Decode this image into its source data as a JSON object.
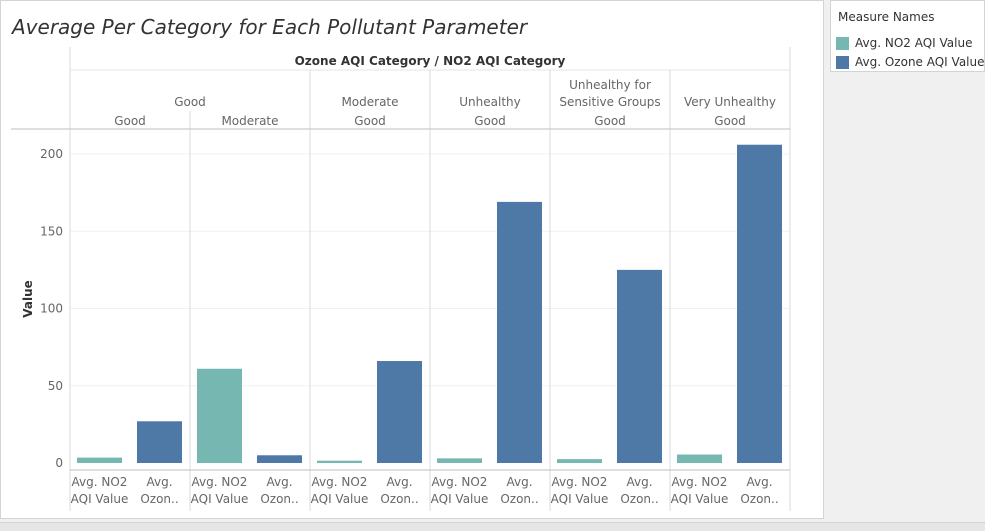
{
  "colors": {
    "no2": "#76b7b2",
    "ozone": "#4e79a7"
  },
  "legend": {
    "title": "Measure Names",
    "items": [
      {
        "label": "Avg. NO2 AQI Value",
        "color": "#76b7b2"
      },
      {
        "label": "Avg. Ozone AQI Value",
        "color": "#4e79a7"
      }
    ]
  },
  "chart_data": {
    "type": "bar",
    "title": "Average Per Category for Each Pollutant Parameter",
    "header_title": "Ozone AQI Category  /  NO2 AQI Category",
    "ylabel": "Value",
    "ylim": [
      0,
      210
    ],
    "yticks": [
      0,
      50,
      100,
      150,
      200
    ],
    "grid": true,
    "legend_position": "top-right",
    "bar_labels": [
      [
        "Avg. NO2",
        "AQI Value"
      ],
      [
        "Avg.",
        "Ozon.."
      ]
    ],
    "groups": [
      {
        "ozone_category": [
          "Good"
        ],
        "no2_category": "Good",
        "values": [
          3.5,
          27
        ]
      },
      {
        "ozone_category": [
          "Good"
        ],
        "no2_category": "Moderate",
        "values": [
          61,
          5
        ]
      },
      {
        "ozone_category": [
          "Moderate"
        ],
        "no2_category": "Good",
        "values": [
          1.5,
          66
        ]
      },
      {
        "ozone_category": [
          "Unhealthy"
        ],
        "no2_category": "Good",
        "values": [
          3,
          169
        ]
      },
      {
        "ozone_category": [
          "Unhealthy for",
          "Sensitive Groups"
        ],
        "no2_category": "Good",
        "values": [
          2.5,
          125
        ]
      },
      {
        "ozone_category": [
          "Very Unhealthy"
        ],
        "no2_category": "Good",
        "values": [
          5.5,
          206
        ]
      }
    ],
    "series": [
      {
        "name": "Avg. NO2 AQI Value",
        "values": [
          3.5,
          61,
          1.5,
          3,
          2.5,
          5.5
        ]
      },
      {
        "name": "Avg. Ozone AQI Value",
        "values": [
          27,
          5,
          66,
          169,
          125,
          206
        ]
      }
    ]
  }
}
